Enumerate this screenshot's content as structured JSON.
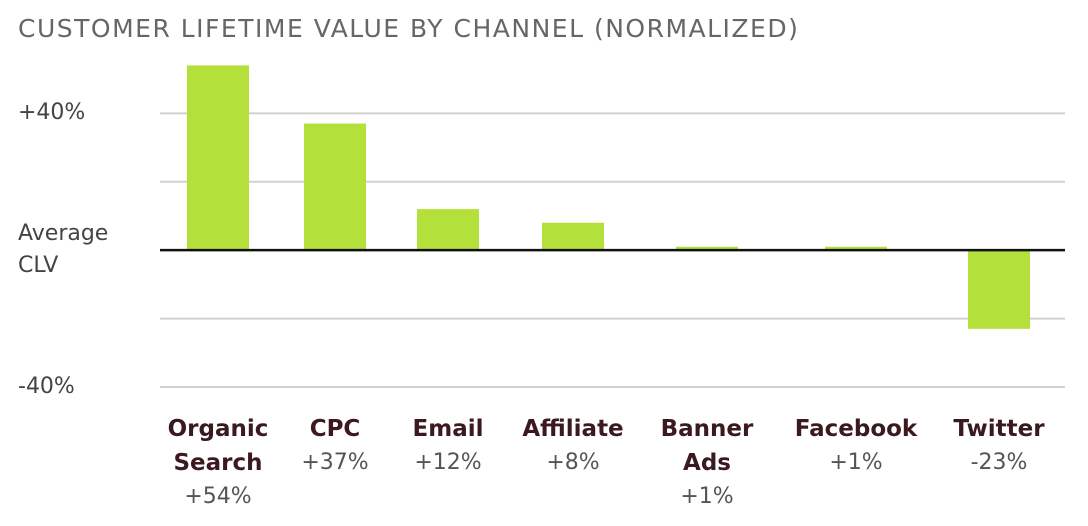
{
  "chart_data": {
    "type": "bar",
    "title": "CUSTOMER LIFETIME VALUE BY CHANNEL (NORMALIZED)",
    "categories": [
      "Organic Search",
      "CPC",
      "Email",
      "Affiliate",
      "Banner Ads",
      "Facebook",
      "Twitter"
    ],
    "values": [
      54,
      37,
      12,
      8,
      1,
      1,
      -23
    ],
    "value_labels": [
      "+54%",
      "+37%",
      "+12%",
      "+8%",
      "+1%",
      "+1%",
      "-23%"
    ],
    "color": "#b4e03b",
    "ylim": [
      -40,
      55
    ],
    "yticks": [
      {
        "value": 40,
        "label": "+40%"
      },
      {
        "value": 20,
        "label": null
      },
      {
        "value": 0,
        "label": "Average CLV"
      },
      {
        "value": -20,
        "label": null
      },
      {
        "value": -40,
        "label": "-40%"
      }
    ],
    "grid": true
  }
}
